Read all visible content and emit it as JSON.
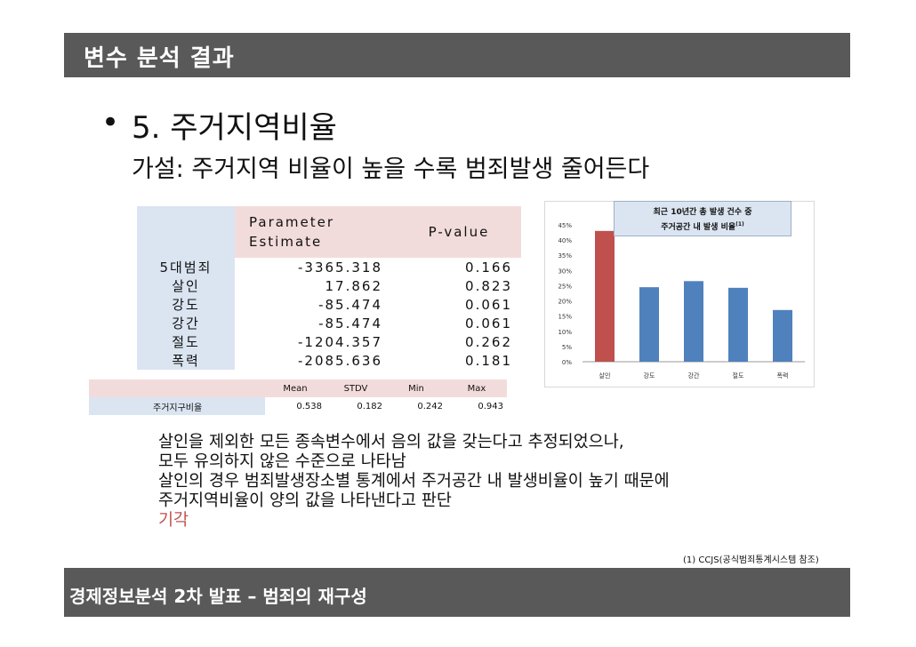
{
  "slide": {
    "title": "변수 분석 결과",
    "bullet": "•",
    "heading": "5. 주거지역비율",
    "hypothesis": "가설: 주거지역 비율이 높을 수록 범죄발생 줄어든다",
    "param_table": {
      "col_estimate": [
        "Parameter",
        "Estimate"
      ],
      "col_pvalue": "P-value",
      "rows": [
        {
          "label": "5대범죄",
          "estimate": "-3365.318",
          "pvalue": "0.166"
        },
        {
          "label": "살인",
          "estimate": "17.862",
          "pvalue": "0.823"
        },
        {
          "label": "강도",
          "estimate": "-85.474",
          "pvalue": "0.061"
        },
        {
          "label": "강간",
          "estimate": "-85.474",
          "pvalue": "0.061"
        },
        {
          "label": "절도",
          "estimate": "-1204.357",
          "pvalue": "0.262"
        },
        {
          "label": "폭력",
          "estimate": "-2085.636",
          "pvalue": "0.181"
        }
      ]
    },
    "stats_table": {
      "headers": [
        "Mean",
        "STDV",
        "Min",
        "Max"
      ],
      "row_label": "주거지구비율",
      "values": [
        "0.538",
        "0.182",
        "0.242",
        "0.943"
      ]
    },
    "body_lines": [
      "살인을 제외한 모든 종속변수에서 음의 값을 갖는다고 추정되었으나,",
      "모두 유의하지 않은 수준으로 나타남",
      "살인의 경우 범죄발생장소별 통계에서 주거공간 내 발생비율이 높기 때문에",
      "주거지역비율이 양의 값을 나타낸다고 판단"
    ],
    "verdict": "기각",
    "footnote": "(1) CCJS(공식범죄통계시스템 참조)",
    "footer": "경제정보분석  2차 발표 – 범죄의 재구성"
  },
  "chart_data": {
    "type": "bar",
    "title": "최근 10년간 총 발생 건수 중 주거공간 내 발생 비율",
    "title_line1": "최근 10년간 총 발생 건수 중",
    "title_line2": "주거공간 내 발생 비율",
    "title_sup": "(1)",
    "categories": [
      "살인",
      "강도",
      "강간",
      "절도",
      "폭력"
    ],
    "values": [
      0.43,
      0.245,
      0.265,
      0.243,
      0.17
    ],
    "ylim": [
      0,
      0.45
    ],
    "yticks": [
      "0%",
      "5%",
      "10%",
      "15%",
      "20%",
      "25%",
      "30%",
      "35%",
      "40%",
      "45%"
    ],
    "colors": [
      "#c0504d",
      "#4f81bd",
      "#4f81bd",
      "#4f81bd",
      "#4f81bd"
    ]
  }
}
